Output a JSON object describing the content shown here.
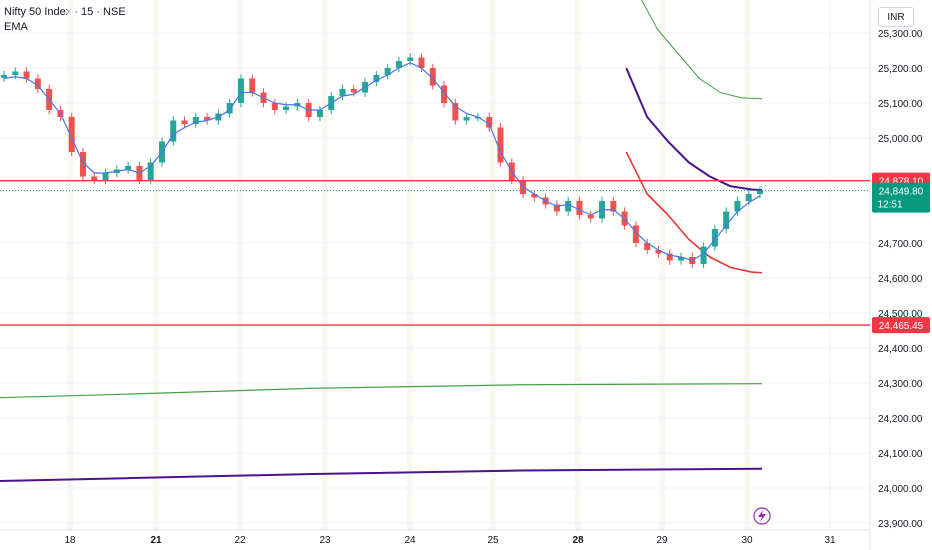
{
  "header": {
    "title": "Nifty 50 Index · 15 · NSE",
    "indicator": "EMA",
    "currency": "INR"
  },
  "colors": {
    "up": "#26a69a",
    "down": "#ef5350",
    "ema_fast": "#4a78e0",
    "ema_dark": "#4a148c",
    "ema_red": "#e53935",
    "ema_green": "#43a047",
    "h_line": "#f23645",
    "price_badge": "#089981",
    "grid": "#f0f3fa",
    "axis_text": "#131722"
  },
  "chart_data": {
    "type": "candlestick",
    "title": "",
    "ylim": [
      23900,
      25420
    ],
    "y_ticks": [
      "25,300.00",
      "25,200.00",
      "25,100.00",
      "25,000.00",
      "24,700.00",
      "24,600.00",
      "24,500.00",
      "24,400.00",
      "24,300.00",
      "24,200.00",
      "24,100.00",
      "24,000.00",
      "23,900.00"
    ],
    "y_tick_values": [
      25300,
      25200,
      25100,
      25000,
      24700,
      24600,
      24500,
      24400,
      24300,
      24200,
      24100,
      24000,
      23900
    ],
    "x_ticks": [
      "18",
      "21",
      "22",
      "23",
      "24",
      "25",
      "28",
      "29",
      "30",
      "31"
    ],
    "x_tick_bold": [
      false,
      true,
      false,
      false,
      false,
      false,
      true,
      false,
      false,
      false
    ],
    "close_path": [
      25180,
      25190,
      25170,
      25140,
      25080,
      25060,
      24960,
      24890,
      24880,
      24900,
      24910,
      24920,
      24880,
      24930,
      24990,
      25050,
      25040,
      25060,
      25050,
      25070,
      25100,
      25170,
      25130,
      25100,
      25080,
      25090,
      25100,
      25060,
      25080,
      25120,
      25140,
      25130,
      25160,
      25180,
      25200,
      25220,
      25230,
      25200,
      25150,
      25100,
      25050,
      25060,
      25060,
      25030,
      24930,
      24880,
      24840,
      24830,
      24810,
      24790,
      24820,
      24780,
      24770,
      24820,
      24790,
      24750,
      24700,
      24680,
      24670,
      24650,
      24660,
      24640,
      24690,
      24740,
      24790,
      24820,
      24840,
      24850
    ],
    "ema_fast": [
      25170,
      25175,
      25170,
      25150,
      25110,
      25070,
      25000,
      24930,
      24900,
      24900,
      24905,
      24910,
      24900,
      24920,
      24960,
      25010,
      25030,
      25045,
      25050,
      25060,
      25080,
      25130,
      25130,
      25115,
      25100,
      25095,
      25095,
      25080,
      25080,
      25100,
      25120,
      25125,
      25145,
      25165,
      25180,
      25200,
      25215,
      25200,
      25170,
      25130,
      25090,
      25070,
      25060,
      25040,
      24960,
      24905,
      24860,
      24840,
      24820,
      24805,
      24810,
      24795,
      24780,
      24795,
      24795,
      24770,
      24730,
      24700,
      24680,
      24665,
      24660,
      24650,
      24670,
      24710,
      24750,
      24790,
      24815,
      24835
    ],
    "ema_dark_points": [
      [
        24.0,
        25200
      ],
      [
        24.8,
        25060
      ],
      [
        25.6,
        24990
      ],
      [
        26.4,
        24930
      ],
      [
        27.2,
        24890
      ],
      [
        28.0,
        24862
      ],
      [
        28.8,
        24853
      ],
      [
        29.2,
        24851
      ]
    ],
    "ema_red_points": [
      [
        24.0,
        24960
      ],
      [
        24.8,
        24840
      ],
      [
        25.6,
        24780
      ],
      [
        26.4,
        24710
      ],
      [
        27.2,
        24660
      ],
      [
        28.0,
        24630
      ],
      [
        28.8,
        24617
      ],
      [
        29.2,
        24615
      ]
    ],
    "ema_green_top_points": [
      [
        24.4,
        25420
      ],
      [
        25.2,
        25310
      ],
      [
        26.0,
        25240
      ],
      [
        26.8,
        25170
      ],
      [
        27.6,
        25130
      ],
      [
        28.4,
        25115
      ],
      [
        29.2,
        25112
      ]
    ],
    "ema_green_long_points": [
      [
        0,
        24258
      ],
      [
        4.8,
        24268
      ],
      [
        12,
        24285
      ],
      [
        20,
        24295
      ],
      [
        29.2,
        24298
      ]
    ],
    "ema_dark_long_points": [
      [
        0,
        24020
      ],
      [
        4.8,
        24028
      ],
      [
        12,
        24040
      ],
      [
        20,
        24050
      ],
      [
        29.2,
        24055
      ]
    ],
    "h_lines": [
      {
        "value": 24878.1,
        "label": "24,878.10"
      },
      {
        "value": 24465.45,
        "label": "24,465.45"
      }
    ],
    "last_price": {
      "value": 24849.8,
      "label": "24,849.80",
      "timer": "12:51"
    }
  }
}
